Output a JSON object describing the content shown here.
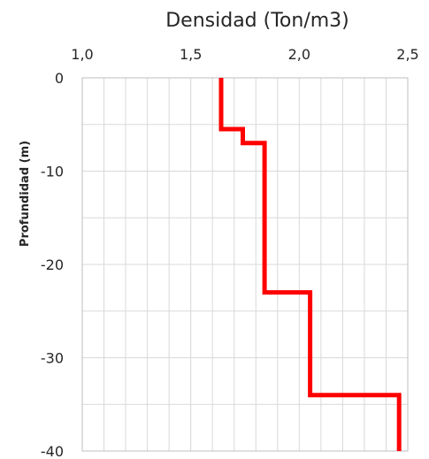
{
  "chart_data": {
    "type": "line",
    "title": "Densidad (Ton/m3)",
    "xlabel": "",
    "ylabel": "Profundidad (m)",
    "xlim": [
      1.0,
      2.5
    ],
    "ylim": [
      -40,
      0
    ],
    "x_ticks": [
      1.0,
      1.5,
      2.0,
      2.5
    ],
    "x_tick_labels": [
      "1,0",
      "1,5",
      "2,0",
      "2,5"
    ],
    "y_ticks": [
      0,
      -10,
      -20,
      -30,
      -40
    ],
    "y_tick_labels": [
      "0",
      "-10",
      "-20",
      "-30",
      "-40"
    ],
    "x_axis_position": "top",
    "grid": true,
    "legend": "none",
    "line_color": "#ff0000",
    "series": [
      {
        "x": [
          1.64,
          1.64,
          1.74,
          1.74,
          1.84,
          1.84,
          2.05,
          2.05,
          2.46,
          2.46
        ],
        "y": [
          0,
          -5.5,
          -5.5,
          -7,
          -7,
          -23,
          -23,
          -34,
          -34,
          -40
        ]
      }
    ]
  }
}
